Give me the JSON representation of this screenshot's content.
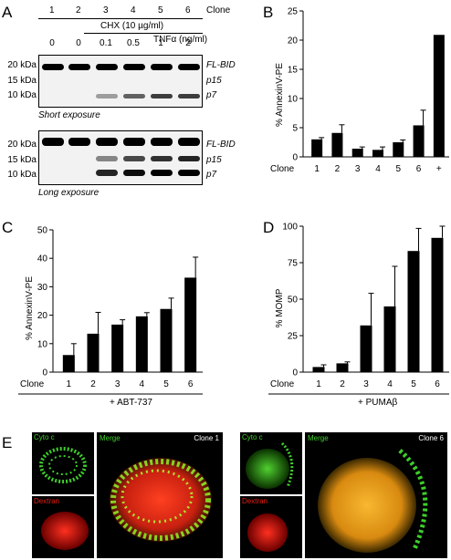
{
  "panelA": {
    "letter": "A",
    "clone_header": "Clone",
    "clone_numbers": [
      "1",
      "2",
      "3",
      "4",
      "5",
      "6"
    ],
    "chx_label": "CHX (10 µg/ml)",
    "tnf_label": "TNFα (ng/ml)",
    "tnf_values": [
      "0",
      "0",
      "0.1",
      "0.5",
      "1",
      "2"
    ],
    "short": {
      "markers": [
        "20 kDa",
        "15 kDa",
        "10 kDa"
      ],
      "bands": [
        "FL-BID",
        "p15",
        "p7"
      ],
      "caption": "Short exposure"
    },
    "long": {
      "markers": [
        "20 kDa",
        "15 kDa",
        "10 kDa"
      ],
      "bands": [
        "FL-BID",
        "p15",
        "p7"
      ],
      "caption": "Long exposure"
    }
  },
  "panelB": {
    "letter": "B",
    "ylabel": "% AnnexinV-PE",
    "xprefix": "Clone",
    "chart_data": {
      "type": "bar",
      "categories": [
        "1",
        "2",
        "3",
        "4",
        "5",
        "6",
        "+"
      ],
      "values": [
        3.0,
        4.1,
        1.4,
        1.2,
        2.5,
        5.4,
        20.9
      ],
      "errors": [
        0.3,
        1.4,
        0.3,
        0.5,
        0.4,
        2.6,
        0
      ],
      "ylim": [
        0,
        25
      ],
      "yticks": [
        "0",
        "5",
        "10",
        "15",
        "20",
        "25"
      ]
    }
  },
  "panelC": {
    "letter": "C",
    "ylabel": "% AnnexinV-PE",
    "xprefix": "Clone",
    "treatment": "+ ABT-737",
    "chart_data": {
      "type": "bar",
      "categories": [
        "1",
        "2",
        "3",
        "4",
        "5",
        "6"
      ],
      "values": [
        6.0,
        13.5,
        16.7,
        19.6,
        22.2,
        33.2
      ],
      "errors": [
        4.0,
        7.5,
        1.7,
        1.3,
        3.8,
        7.2
      ],
      "ylim": [
        0,
        50
      ],
      "yticks": [
        "0",
        "10",
        "20",
        "30",
        "40",
        "50"
      ]
    }
  },
  "panelD": {
    "letter": "D",
    "ylabel": "% MOMP",
    "xprefix": "Clone",
    "treatment": "+ PUMAβ",
    "chart_data": {
      "type": "bar",
      "categories": [
        "1",
        "2",
        "3",
        "4",
        "5",
        "6"
      ],
      "values": [
        3.5,
        6.0,
        32.0,
        45.0,
        83.0,
        92.0
      ],
      "errors": [
        1.5,
        1.0,
        22.0,
        27.5,
        15.5,
        8.0
      ],
      "ylim": [
        0,
        100
      ],
      "yticks": [
        "0",
        "25",
        "50",
        "75",
        "100"
      ]
    }
  },
  "panelE": {
    "letter": "E",
    "left": {
      "cyto": "Cyto c",
      "dextran": "Dextran",
      "merge": "Merge",
      "clone": "Clone 1"
    },
    "right": {
      "cyto": "Cyto c",
      "dextran": "Dextran",
      "merge": "Merge",
      "clone": "Clone 6"
    },
    "colors": {
      "green": "#3ecf2a",
      "red": "#e81c10",
      "orange": "#f0a020"
    }
  }
}
